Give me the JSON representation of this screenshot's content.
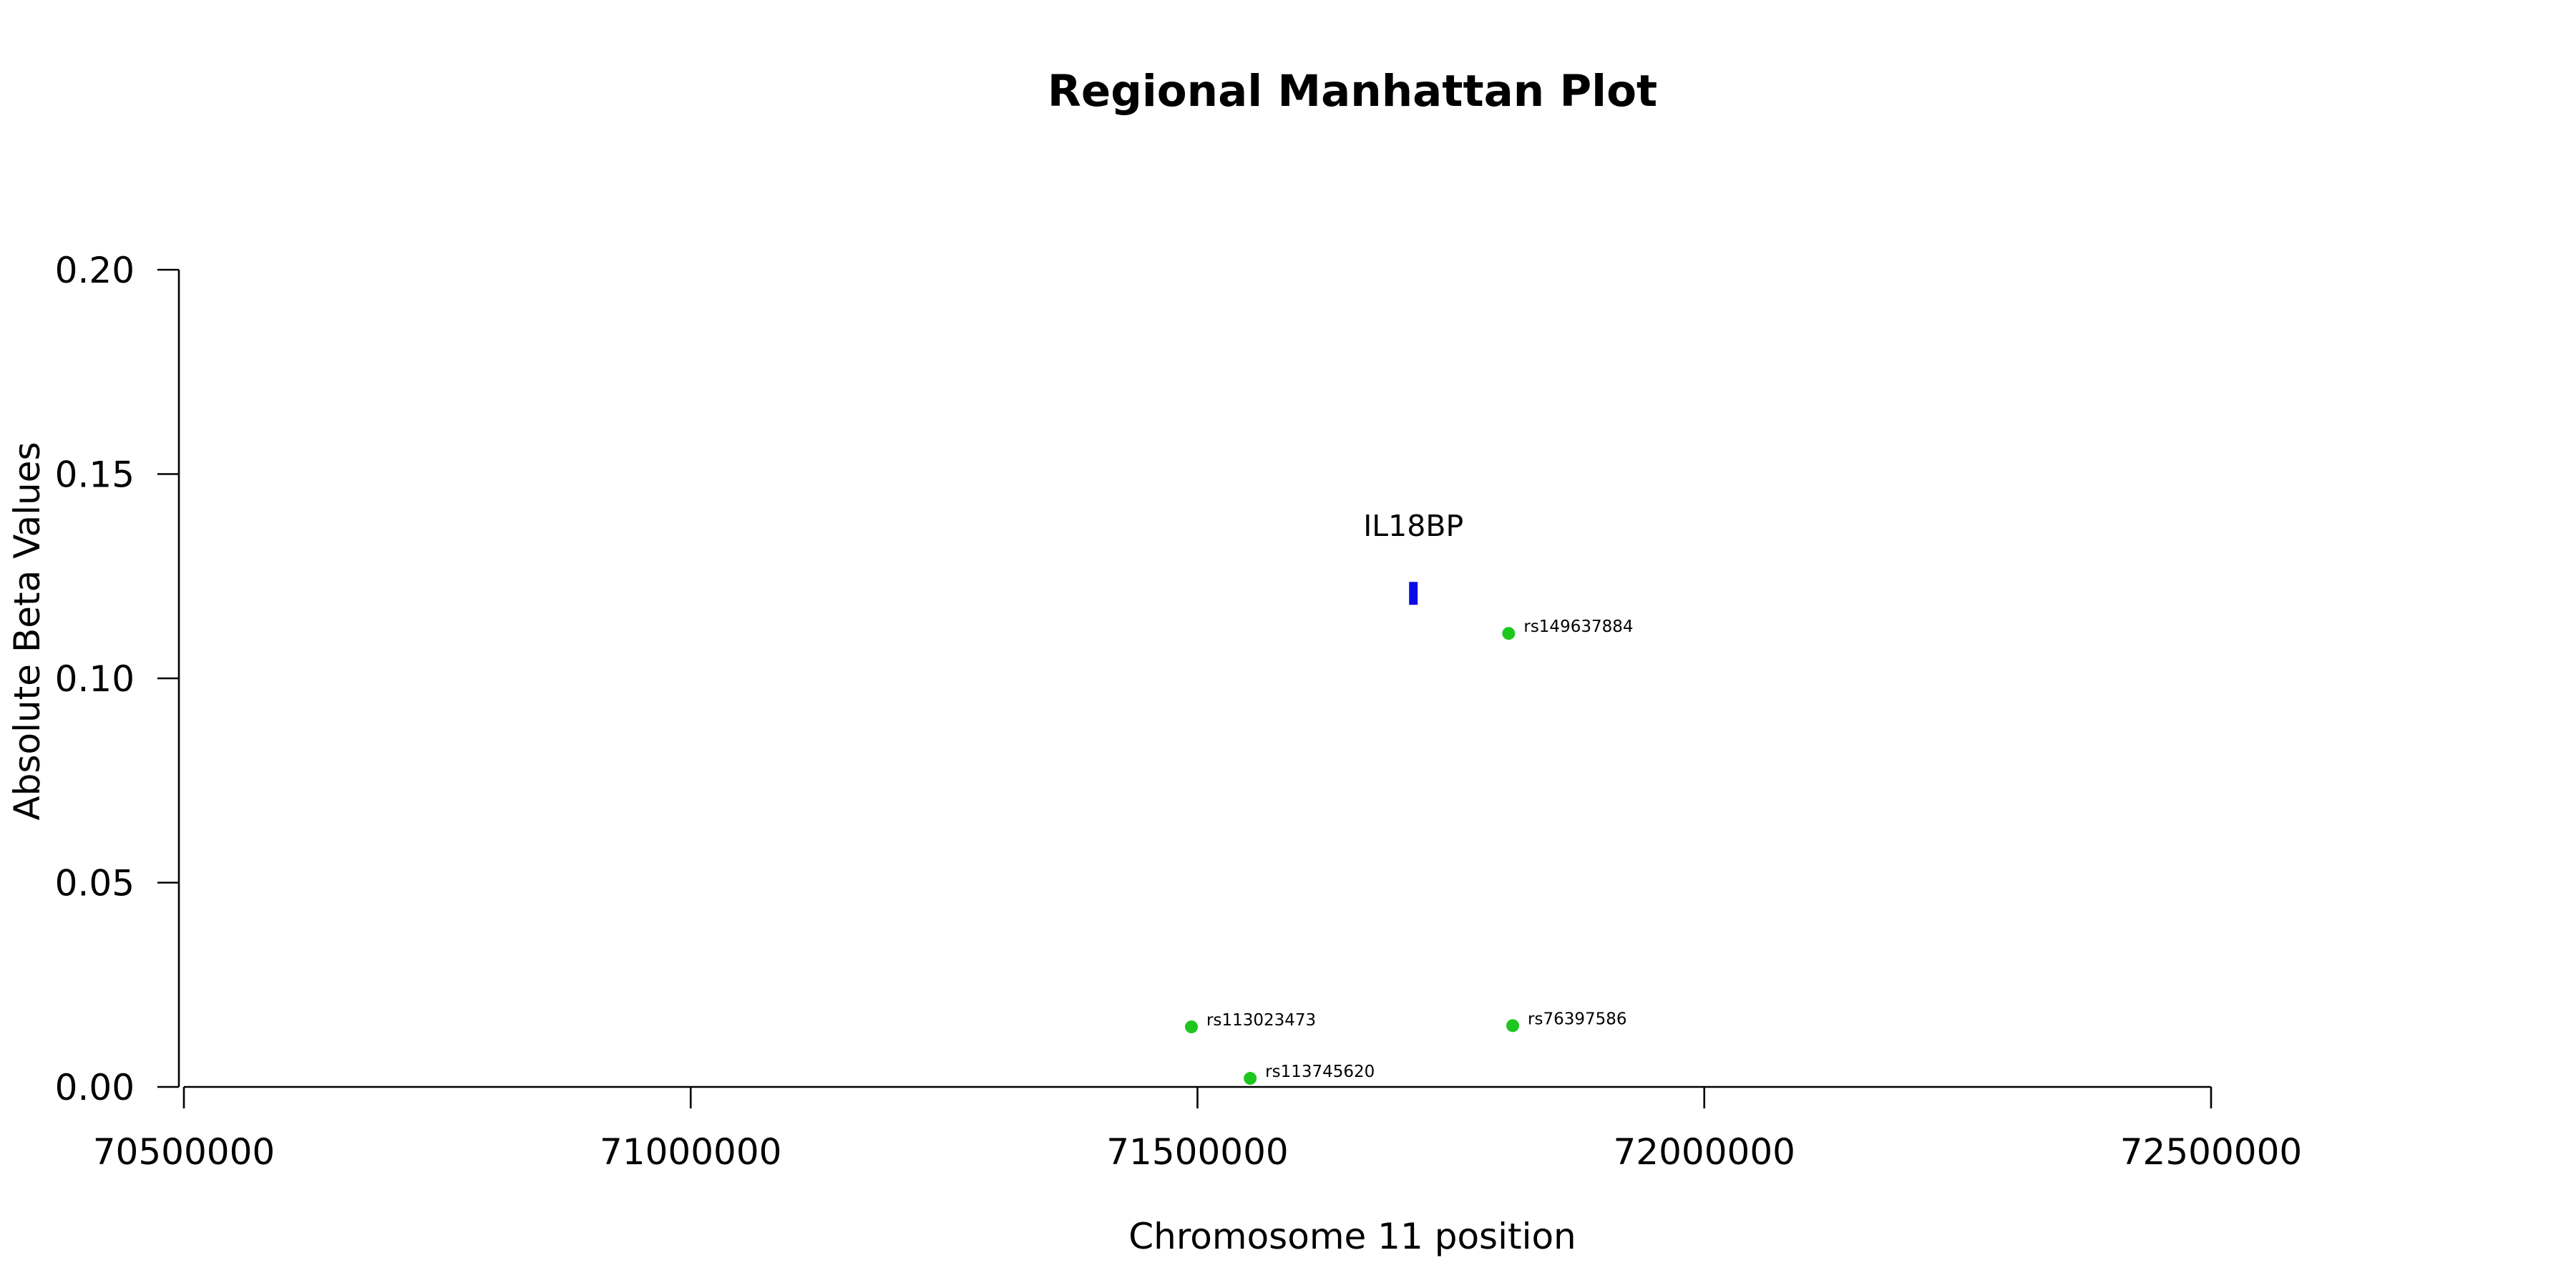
{
  "chart_data": {
    "type": "scatter",
    "title": "Regional Manhattan Plot",
    "xlabel": "Chromosome 11 position",
    "ylabel": "Absolute Beta Values",
    "xlim": [
      70500000,
      72500000
    ],
    "ylim": [
      0,
      0.2
    ],
    "x_ticks": [
      "70500000",
      "71000000",
      "71500000",
      "72000000",
      "72500000"
    ],
    "y_ticks": [
      "0.00",
      "0.05",
      "0.10",
      "0.15",
      "0.20"
    ],
    "grid": false,
    "legend": "none",
    "point_color": "#1ec71e",
    "gene_color": "#0a0ae6",
    "points": [
      {
        "label": "rs149637884",
        "x": 71807000,
        "y": 0.111
      },
      {
        "label": "rs113023473",
        "x": 71494000,
        "y": 0.0147
      },
      {
        "label": "rs76397586",
        "x": 71811000,
        "y": 0.015
      },
      {
        "label": "rs113745620",
        "x": 71552000,
        "y": 0.0021
      }
    ],
    "genes": [
      {
        "name": "IL18BP",
        "x": 71713000,
        "y": 0.1208
      }
    ]
  }
}
